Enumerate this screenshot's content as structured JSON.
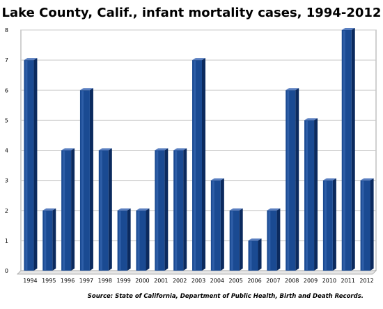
{
  "chart_data": {
    "type": "bar",
    "title": "Lake County, Calif., infant mortality cases, 1994-2012",
    "source": "Source: State of California, Department of Public Health, Birth and Death Records.",
    "xlabel": "",
    "ylabel": "",
    "categories": [
      "1994",
      "1995",
      "1996",
      "1997",
      "1998",
      "1999",
      "2000",
      "2001",
      "2002",
      "2003",
      "2004",
      "2005",
      "2006",
      "2007",
      "2008",
      "2009",
      "2010",
      "2011",
      "2012"
    ],
    "values": [
      7,
      2,
      4,
      6,
      4,
      2,
      2,
      4,
      4,
      7,
      3,
      2,
      1,
      2,
      6,
      5,
      3,
      8,
      3
    ],
    "ylim": [
      0,
      8
    ],
    "yticks": [
      "0",
      "1",
      "2",
      "3",
      "4",
      "5",
      "6",
      "7",
      "8"
    ],
    "grid": true,
    "legend": "none",
    "colors": {
      "bar_front": "#1a4a92",
      "bar_side": "#0b2a5e",
      "bar_top": "#5a7fc0",
      "grid": "#c8c8c8",
      "frame": "#a0a0a0"
    }
  }
}
